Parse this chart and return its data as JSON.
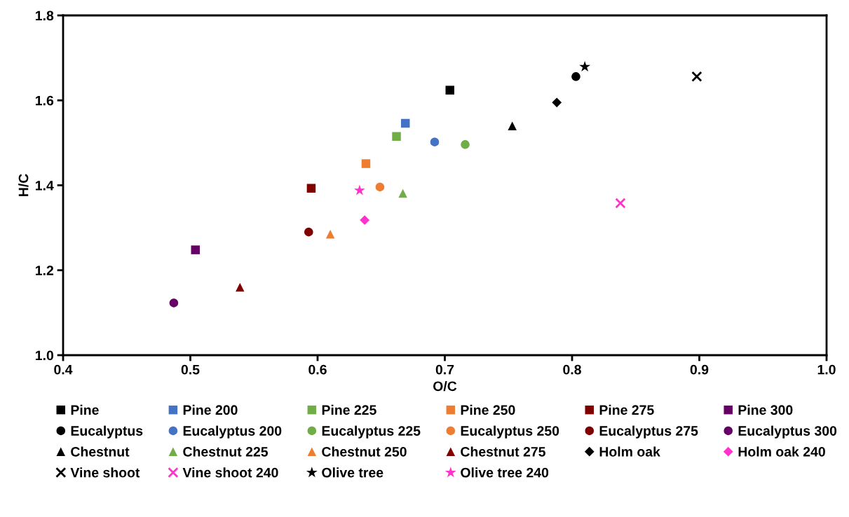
{
  "chart_data": {
    "type": "scatter",
    "xlabel": "O/C",
    "ylabel": "H/C",
    "xlim": [
      0.4,
      1.0
    ],
    "xticks": [
      {
        "value": 0.4,
        "label": "0.4"
      },
      {
        "value": 0.5,
        "label": "0.5"
      },
      {
        "value": 0.6,
        "label": "0.6"
      },
      {
        "value": 0.7,
        "label": "0.7"
      },
      {
        "value": 0.8,
        "label": "0.8"
      },
      {
        "value": 0.9,
        "label": "0.9"
      },
      {
        "value": 1.0,
        "label": "1.0"
      }
    ],
    "ylim": [
      1.0,
      1.8
    ],
    "yticks": [
      {
        "value": 1.0,
        "label": "1.0"
      },
      {
        "value": 1.2,
        "label": "1.2"
      },
      {
        "value": 1.4,
        "label": "1.4"
      },
      {
        "value": 1.6,
        "label": "1.6"
      },
      {
        "value": 1.8,
        "label": "1.8"
      }
    ],
    "grid": false,
    "legend": "bottom",
    "series": [
      {
        "name": "Pine",
        "color": "#000000",
        "marker": "square",
        "x": [
          0.704
        ],
        "values": [
          1.624
        ]
      },
      {
        "name": "Pine 200",
        "color": "#4472c4",
        "marker": "square",
        "x": [
          0.669
        ],
        "values": [
          1.546
        ]
      },
      {
        "name": "Pine 225",
        "color": "#70ad47",
        "marker": "square",
        "x": [
          0.662
        ],
        "values": [
          1.515
        ]
      },
      {
        "name": "Pine 250",
        "color": "#ed7d31",
        "marker": "square",
        "x": [
          0.638
        ],
        "values": [
          1.451
        ]
      },
      {
        "name": "Pine 275",
        "color": "#800000",
        "marker": "square",
        "x": [
          0.595
        ],
        "values": [
          1.393
        ]
      },
      {
        "name": "Pine 300",
        "color": "#660066",
        "marker": "square",
        "x": [
          0.504
        ],
        "values": [
          1.248
        ]
      },
      {
        "name": "Eucalyptus",
        "color": "#000000",
        "marker": "circle",
        "x": [
          0.803
        ],
        "values": [
          1.656
        ]
      },
      {
        "name": "Eucalyptus 200",
        "color": "#4472c4",
        "marker": "circle",
        "x": [
          0.692
        ],
        "values": [
          1.502
        ]
      },
      {
        "name": "Eucalyptus 225",
        "color": "#70ad47",
        "marker": "circle",
        "x": [
          0.716
        ],
        "values": [
          1.496
        ]
      },
      {
        "name": "Eucalyptus 250",
        "color": "#ed7d31",
        "marker": "circle",
        "x": [
          0.649
        ],
        "values": [
          1.396
        ]
      },
      {
        "name": "Eucalyptus 275",
        "color": "#800000",
        "marker": "circle",
        "x": [
          0.593
        ],
        "values": [
          1.29
        ]
      },
      {
        "name": "Eucalyptus 300",
        "color": "#660066",
        "marker": "circle",
        "x": [
          0.487
        ],
        "values": [
          1.123
        ]
      },
      {
        "name": "Chestnut",
        "color": "#000000",
        "marker": "triangle",
        "x": [
          0.753
        ],
        "values": [
          1.54
        ]
      },
      {
        "name": "Chestnut 225",
        "color": "#70ad47",
        "marker": "triangle",
        "x": [
          0.667
        ],
        "values": [
          1.381
        ]
      },
      {
        "name": "Chestnut 250",
        "color": "#ed7d31",
        "marker": "triangle",
        "x": [
          0.61
        ],
        "values": [
          1.285
        ]
      },
      {
        "name": "Chestnut 275",
        "color": "#800000",
        "marker": "triangle",
        "x": [
          0.539
        ],
        "values": [
          1.16
        ]
      },
      {
        "name": "Holm oak",
        "color": "#000000",
        "marker": "diamond",
        "x": [
          0.788
        ],
        "values": [
          1.595
        ]
      },
      {
        "name": "Holm oak 240",
        "color": "#ff33cc",
        "marker": "diamond",
        "x": [
          0.637
        ],
        "values": [
          1.318
        ]
      },
      {
        "name": "Vine shoot",
        "color": "#000000",
        "marker": "cross",
        "x": [
          0.898
        ],
        "values": [
          1.656
        ]
      },
      {
        "name": "Vine shoot 240",
        "color": "#ff33cc",
        "marker": "cross",
        "x": [
          0.838
        ],
        "values": [
          1.358
        ]
      },
      {
        "name": "Olive tree",
        "color": "#000000",
        "marker": "star",
        "x": [
          0.81
        ],
        "values": [
          1.679
        ]
      },
      {
        "name": "Olive tree 240",
        "color": "#ff33cc",
        "marker": "star",
        "x": [
          0.633
        ],
        "values": [
          1.388
        ]
      }
    ]
  }
}
